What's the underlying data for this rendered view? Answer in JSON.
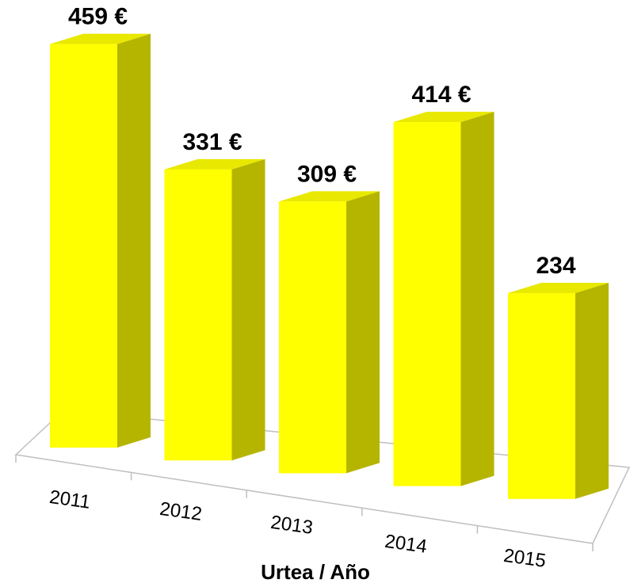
{
  "chart_data": {
    "type": "bar3d",
    "categories": [
      "2011",
      "2012",
      "2013",
      "2014",
      "2015"
    ],
    "values": [
      459,
      331,
      309,
      414,
      234
    ],
    "value_labels": [
      "459 €",
      "331 €",
      "309 €",
      "414 €",
      "234"
    ],
    "x_label": "Urtea / Año",
    "color": "#ffff00"
  }
}
